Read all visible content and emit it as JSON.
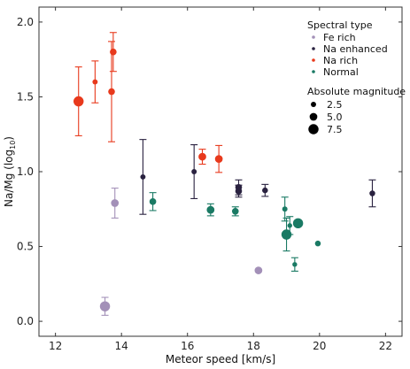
{
  "chart_data": {
    "type": "scatter",
    "xlabel": "Meteor speed [km/s]",
    "ylabel_main": "Na/Mg (log",
    "ylabel_sub": "10",
    "ylabel_end": ")",
    "xlim": [
      11.5,
      22.5
    ],
    "ylim": [
      -0.1,
      2.1
    ],
    "xticks": [
      12,
      14,
      16,
      18,
      20,
      22
    ],
    "yticks": [
      0.0,
      0.5,
      1.0,
      1.5,
      2.0
    ],
    "xtick_labels": [
      "12",
      "14",
      "16",
      "18",
      "20",
      "22"
    ],
    "ytick_labels": [
      "0.0",
      "0.5",
      "1.0",
      "1.5",
      "2.0"
    ],
    "legend_title": "Spectral type",
    "size_legend_title": "Absolute magnitude",
    "size_legend": [
      {
        "label": "2.5",
        "size": 2.5
      },
      {
        "label": "5.0",
        "size": 5.0
      },
      {
        "label": "7.5",
        "size": 7.5
      }
    ],
    "series": [
      {
        "name": "Fe rich",
        "color": "#a390b8",
        "points": [
          {
            "x": 13.8,
            "y": 0.79,
            "err": 0.1,
            "size": 5.0
          },
          {
            "x": 13.5,
            "y": 0.1,
            "err": 0.06,
            "size": 7.5
          },
          {
            "x": 18.15,
            "y": 0.34,
            "err": 0,
            "size": 5.0
          }
        ]
      },
      {
        "name": "Na enhanced",
        "color": "#2a2240",
        "points": [
          {
            "x": 14.65,
            "y": 0.965,
            "err": 0.25,
            "size": 2.5
          },
          {
            "x": 16.2,
            "y": 1.0,
            "err": 0.18,
            "size": 2.5
          },
          {
            "x": 17.55,
            "y": 0.895,
            "err": 0.05,
            "size": 4.0
          },
          {
            "x": 17.55,
            "y": 0.87,
            "err": 0.04,
            "size": 4.0
          },
          {
            "x": 18.35,
            "y": 0.875,
            "err": 0.04,
            "size": 3.0
          },
          {
            "x": 21.6,
            "y": 0.855,
            "err": 0.09,
            "size": 3.0
          }
        ]
      },
      {
        "name": "Na rich",
        "color": "#e8391c",
        "points": [
          {
            "x": 12.7,
            "y": 1.47,
            "err": 0.23,
            "size": 7.5
          },
          {
            "x": 13.2,
            "y": 1.6,
            "err": 0.14,
            "size": 2.5
          },
          {
            "x": 13.75,
            "y": 1.8,
            "err": 0.13,
            "size": 4.0
          },
          {
            "x": 13.7,
            "y": 1.535,
            "err": 0.335,
            "size": 4.0
          },
          {
            "x": 16.45,
            "y": 1.1,
            "err": 0.05,
            "size": 5.0
          },
          {
            "x": 16.95,
            "y": 1.085,
            "err": 0.09,
            "size": 5.0
          }
        ]
      },
      {
        "name": "Normal",
        "color": "#1a7a64",
        "points": [
          {
            "x": 14.95,
            "y": 0.8,
            "err": 0.06,
            "size": 4.0
          },
          {
            "x": 16.7,
            "y": 0.745,
            "err": 0.04,
            "size": 5.0
          },
          {
            "x": 17.45,
            "y": 0.735,
            "err": 0.03,
            "size": 4.0
          },
          {
            "x": 18.95,
            "y": 0.75,
            "err": 0.08,
            "size": 2.5
          },
          {
            "x": 19.1,
            "y": 0.64,
            "err": 0.06,
            "size": 2.0
          },
          {
            "x": 19.0,
            "y": 0.58,
            "err": 0.11,
            "size": 7.5
          },
          {
            "x": 19.35,
            "y": 0.655,
            "err": 0,
            "size": 7.5
          },
          {
            "x": 19.25,
            "y": 0.38,
            "err": 0.045,
            "size": 2.0
          },
          {
            "x": 19.95,
            "y": 0.52,
            "err": 0,
            "size": 3.0
          }
        ]
      }
    ]
  }
}
